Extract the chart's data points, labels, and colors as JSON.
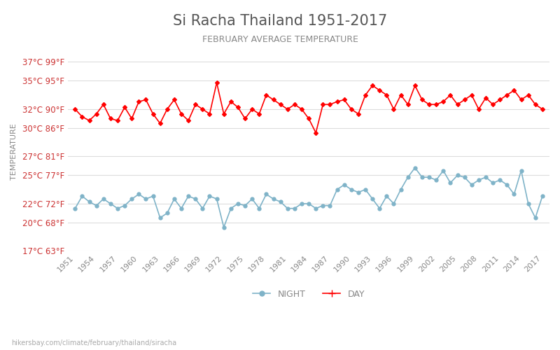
{
  "title": "Si Racha Thailand 1951-2017",
  "subtitle": "FEBRUARY AVERAGE TEMPERATURE",
  "ylabel": "TEMPERATURE",
  "footer": "hikersbay.com/climate/february/thailand/siracha",
  "years": [
    1951,
    1952,
    1953,
    1954,
    1955,
    1956,
    1957,
    1958,
    1959,
    1960,
    1961,
    1962,
    1963,
    1964,
    1965,
    1966,
    1967,
    1968,
    1969,
    1970,
    1971,
    1972,
    1973,
    1974,
    1975,
    1976,
    1977,
    1978,
    1979,
    1980,
    1981,
    1982,
    1983,
    1984,
    1985,
    1986,
    1987,
    1988,
    1989,
    1990,
    1991,
    1992,
    1993,
    1994,
    1995,
    1996,
    1997,
    1998,
    1999,
    2000,
    2001,
    2002,
    2003,
    2004,
    2005,
    2006,
    2007,
    2008,
    2009,
    2010,
    2011,
    2012,
    2013,
    2014,
    2015,
    2016,
    2017
  ],
  "day_temps": [
    32.0,
    31.2,
    30.8,
    31.5,
    32.5,
    31.0,
    30.8,
    32.2,
    31.0,
    32.8,
    33.0,
    31.5,
    30.5,
    32.0,
    33.0,
    31.5,
    30.8,
    32.5,
    32.0,
    31.5,
    34.8,
    31.5,
    32.8,
    32.2,
    31.0,
    32.0,
    31.5,
    33.5,
    33.0,
    32.5,
    32.0,
    32.5,
    32.0,
    31.0,
    29.5,
    32.5,
    32.5,
    32.8,
    33.0,
    32.0,
    31.5,
    33.5,
    34.5,
    34.0,
    33.5,
    32.0,
    33.5,
    32.5,
    34.5,
    33.0,
    32.5,
    32.5,
    32.8,
    33.5,
    32.5,
    33.0,
    33.5,
    32.0,
    33.2,
    32.5,
    33.0,
    33.5,
    34.0,
    33.0,
    33.5,
    32.5,
    32.0
  ],
  "night_temps": [
    21.5,
    22.8,
    22.2,
    21.8,
    22.5,
    22.0,
    21.5,
    21.8,
    22.5,
    23.0,
    22.5,
    22.8,
    20.5,
    21.0,
    22.5,
    21.5,
    22.8,
    22.5,
    21.5,
    22.8,
    22.5,
    19.5,
    21.5,
    22.0,
    21.8,
    22.5,
    21.5,
    23.0,
    22.5,
    22.2,
    21.5,
    21.5,
    22.0,
    22.0,
    21.5,
    21.8,
    21.8,
    23.5,
    24.0,
    23.5,
    23.2,
    23.5,
    22.5,
    21.5,
    22.8,
    22.0,
    23.5,
    24.8,
    25.8,
    24.8,
    24.8,
    24.5,
    25.5,
    24.2,
    25.0,
    24.8,
    24.0,
    24.5,
    24.8,
    24.2,
    24.5,
    24.0,
    23.0,
    25.5,
    22.0,
    20.5,
    22.8
  ],
  "yticks_c": [
    17,
    20,
    22,
    25,
    27,
    30,
    32,
    35,
    37
  ],
  "yticks_f": [
    63,
    68,
    72,
    77,
    81,
    86,
    90,
    95,
    99
  ],
  "xtick_years": [
    1951,
    1954,
    1957,
    1960,
    1963,
    1966,
    1969,
    1972,
    1975,
    1978,
    1981,
    1984,
    1987,
    1990,
    1993,
    1996,
    1999,
    2002,
    2005,
    2008,
    2011,
    2014,
    2017
  ],
  "ylim_min": 17,
  "ylim_max": 38,
  "day_color": "#ff0000",
  "night_color": "#7fb3c8",
  "title_color": "#555555",
  "subtitle_color": "#888888",
  "ytick_color": "#cc3333",
  "background_color": "#ffffff",
  "grid_color": "#dddddd"
}
